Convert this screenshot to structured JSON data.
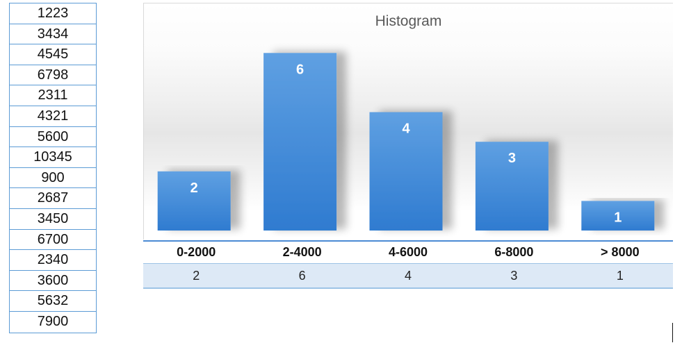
{
  "data_column": {
    "values": [
      "1223",
      "3434",
      "4545",
      "6798",
      "2311",
      "4321",
      "5600",
      "10345",
      "900",
      "2687",
      "3450",
      "6700",
      "2340",
      "3600",
      "5632",
      "7900"
    ]
  },
  "chart_data": {
    "type": "bar",
    "title": "Histogram",
    "xlabel": "",
    "ylabel": "",
    "categories": [
      "0-2000",
      "2-4000",
      "4-6000",
      "6-8000",
      "> 8000"
    ],
    "values": [
      2,
      6,
      4,
      3,
      1
    ],
    "ylim": [
      0,
      6.5
    ],
    "grid": false,
    "data_labels": true,
    "bar_color": "#4a90d9",
    "bar_color_top": "#5fa0e2",
    "bar_color_bottom": "#2f7bd0",
    "label_color": "#ffffff"
  },
  "frequency_table": {
    "bins": [
      "0-2000",
      "2-4000",
      "4-6000",
      "6-8000",
      "> 8000"
    ],
    "counts": [
      "2",
      "6",
      "4",
      "3",
      "1"
    ],
    "header_rule_color": "#4a8ad4",
    "count_row_color": "#dde9f6"
  }
}
